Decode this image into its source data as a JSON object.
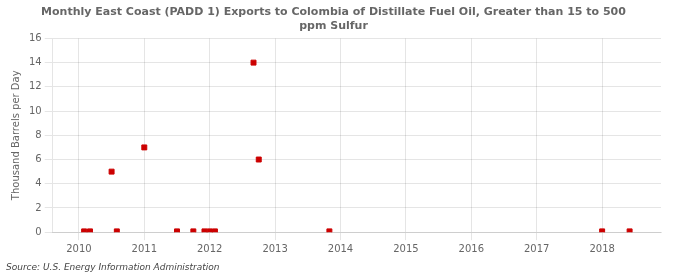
{
  "chart_data": {
    "type": "scatter",
    "title": "Monthly East Coast (PADD 1) Exports to Colombia of Distillate Fuel Oil, Greater than 15 to 500\nppm Sulfur",
    "ylabel": "Thousand Barrels per Day",
    "annotation": "Source: U.S. Energy Information Administration",
    "x": [
      2010.08,
      2010.17,
      2010.5,
      2010.58,
      2011.0,
      2011.5,
      2011.75,
      2011.92,
      2012.0,
      2012.08,
      2012.67,
      2012.75,
      2013.83,
      2018.0,
      2018.42
    ],
    "values": [
      0.07,
      0.07,
      5.0,
      0.07,
      7.0,
      0.07,
      0.07,
      0.07,
      0.07,
      0.07,
      14.0,
      6.0,
      0.07,
      0.07,
      0.07
    ],
    "color": "#cc0000",
    "marker": "square",
    "xlim": [
      2009.6,
      2018.9
    ],
    "ylim": [
      0,
      16
    ],
    "xticks": [
      2010,
      2011,
      2012,
      2013,
      2014,
      2015,
      2016,
      2017,
      2018
    ],
    "yticks": [
      0,
      2,
      4,
      6,
      8,
      10,
      12,
      14,
      16
    ],
    "grid": true
  }
}
